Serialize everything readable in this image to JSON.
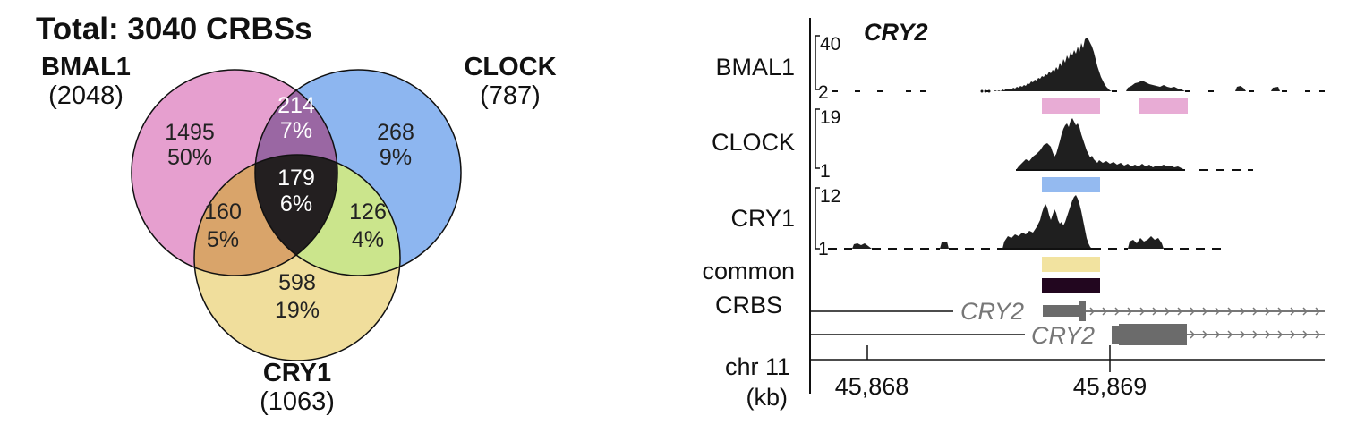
{
  "venn": {
    "title": "Total: 3040 CRBSs",
    "sets": [
      {
        "name": "BMAL1",
        "count": "(2048)",
        "color": "#e69fcf"
      },
      {
        "name": "CLOCK",
        "count": "(787)",
        "color": "#8db6f0"
      },
      {
        "name": "CRY1",
        "count": "(1063)",
        "color": "#f0de9c"
      }
    ],
    "regions": {
      "bmal1_only": {
        "n": "1495",
        "pct": "50%"
      },
      "clock_only": {
        "n": "268",
        "pct": "9%"
      },
      "cry1_only": {
        "n": "598",
        "pct": "19%"
      },
      "bmal1_clock": {
        "n": "214",
        "pct": "7%",
        "color": "#9a67a3"
      },
      "bmal1_cry1": {
        "n": "160",
        "pct": "5%",
        "color": "#d9a46a"
      },
      "clock_cry1": {
        "n": "126",
        "pct": "4%",
        "color": "#cbe58c"
      },
      "all": {
        "n": "179",
        "pct": "6%",
        "color": "#231f20"
      }
    }
  },
  "browser": {
    "gene_title": "CRY2",
    "tracks": [
      {
        "label": "BMAL1",
        "max": "40",
        "min": "2",
        "bar_color": "#e8acd5"
      },
      {
        "label": "CLOCK",
        "max": "19",
        "min": "1",
        "bar_color": "#94baf0"
      },
      {
        "label": "CRY1",
        "max": "12",
        "min": "1",
        "bar_color": "#f2e3a0"
      }
    ],
    "common_label_1": "common",
    "common_label_2": "CRBS",
    "common_color": "#22061f",
    "transcripts": [
      "CRY2",
      "CRY2"
    ],
    "axis": {
      "chrom": "chr 11",
      "unit": "(kb)",
      "ticks": [
        "45,868",
        "45,869"
      ]
    },
    "signal_color": "#1f1f1f"
  }
}
